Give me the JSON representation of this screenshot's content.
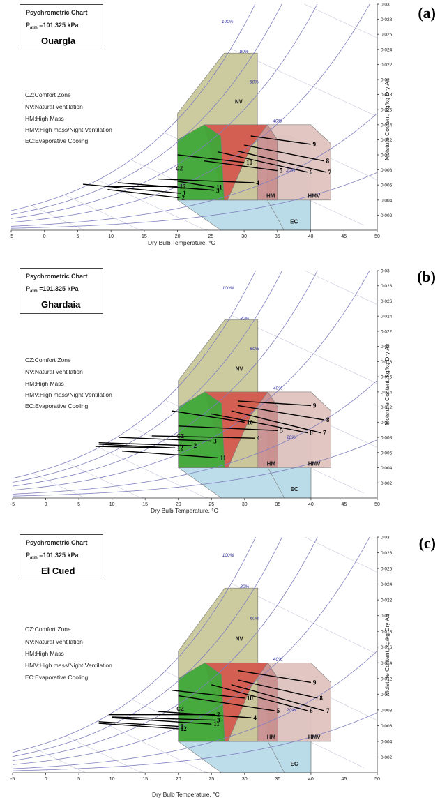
{
  "chart_data": [
    {
      "id": "a",
      "type": "line",
      "panel_label": "(a)",
      "title": "Psychrometric Chart",
      "pressure_label": "P",
      "pressure_sub": "atm",
      "pressure_value": "=101.325 kPa",
      "location": "Ouargla",
      "legend": [
        "CZ:Comfort Zone",
        "NV:Natural Ventilation",
        "HM:High Mass",
        "HMV:High mass/Night Ventilation",
        "EC:Evaporative Cooling"
      ],
      "xlabel": "Dry Bulb Temperature,  °C",
      "ylabel": "Moisture Content, kg/kg Dry Air",
      "xlim": [
        -5,
        50
      ],
      "ylim": [
        0,
        0.03
      ],
      "x_ticks": [
        "-5",
        "0",
        "5",
        "10",
        "15",
        "20",
        "25",
        "30",
        "35",
        "40",
        "45",
        "50"
      ],
      "y_ticks": [
        "0.002",
        "0.004",
        "0.006",
        "0.008",
        "0.01",
        "0.012",
        "0.014",
        "0.016",
        "0.018",
        "0.02",
        "0.022",
        "0.024",
        "0.026",
        "0.028",
        "0.03"
      ],
      "rh_labels": [
        {
          "text": "100%",
          "t": 27.5,
          "w": 0.0275
        },
        {
          "text": "80%",
          "t": 30,
          "w": 0.0235
        },
        {
          "text": "60%",
          "t": 31.5,
          "w": 0.0195
        },
        {
          "text": "40%",
          "t": 35,
          "w": 0.0143
        },
        {
          "text": "20%",
          "t": 37,
          "w": 0.0078
        }
      ],
      "zone_labels": [
        {
          "text": "NV",
          "t": 29.2,
          "w": 0.0168
        },
        {
          "text": "CZ",
          "t": 20.3,
          "w": 0.0079
        },
        {
          "text": "HM",
          "t": 34,
          "w": 0.0043
        },
        {
          "text": "HMV",
          "t": 40.5,
          "w": 0.0043
        },
        {
          "text": "EC",
          "t": 37.5,
          "w": 0.0009
        }
      ],
      "months": [
        {
          "label": "1",
          "t1": 5.8,
          "w1": 0.0061,
          "t2": 20.5,
          "w2": 0.0049
        },
        {
          "label": "2",
          "t1": 9.5,
          "w1": 0.0054,
          "t2": 20.3,
          "w2": 0.0043
        },
        {
          "label": "3",
          "t1": 11,
          "w1": 0.0063,
          "t2": 25.5,
          "w2": 0.0053
        },
        {
          "label": "4",
          "t1": 17,
          "w1": 0.0068,
          "t2": 31.5,
          "w2": 0.0063
        },
        {
          "label": "5",
          "t1": 24,
          "w1": 0.0092,
          "t2": 35,
          "w2": 0.0079
        },
        {
          "label": "6",
          "t1": 26,
          "w1": 0.0104,
          "t2": 39.5,
          "w2": 0.0077
        },
        {
          "label": "7",
          "t1": 29,
          "w1": 0.0105,
          "t2": 42.3,
          "w2": 0.0077
        },
        {
          "label": "8",
          "t1": 30,
          "w1": 0.0113,
          "t2": 42,
          "w2": 0.0092
        },
        {
          "label": "9",
          "t1": 31,
          "w1": 0.0125,
          "t2": 40,
          "w2": 0.0114
        },
        {
          "label": "10",
          "t1": 20,
          "w1": 0.01,
          "t2": 30,
          "w2": 0.009
        },
        {
          "label": "11",
          "t1": 20,
          "w1": 0.0065,
          "t2": 25.5,
          "w2": 0.0057
        },
        {
          "label": "12",
          "t1": 10,
          "w1": 0.0058,
          "t2": 20,
          "w2": 0.0058
        }
      ]
    },
    {
      "id": "b",
      "type": "line",
      "panel_label": "(b)",
      "title": "Psychrometric Chart",
      "pressure_label": "P",
      "pressure_sub": "atm",
      "pressure_value": "=101.325 kPa",
      "location": "Ghardaia",
      "legend": [
        "CZ:Comfort Zone",
        "NV:Natural Ventilation",
        "HM:High Mass",
        "HMV:High mass/Night Ventilation",
        "EC:Evaporative Cooling"
      ],
      "xlabel": "Dry Bulb Temperature,  °C",
      "ylabel": "Moisture Content, kg/kg Dry Air",
      "xlim": [
        -5,
        50
      ],
      "ylim": [
        0,
        0.03
      ],
      "x_ticks": [
        "-5",
        "0",
        "5",
        "10",
        "15",
        "20",
        "25",
        "30",
        "35",
        "40",
        "45",
        "50"
      ],
      "y_ticks": [
        "0.002",
        "0.004",
        "0.006",
        "0.008",
        "0.01",
        "0.012",
        "0.014",
        "0.016",
        "0.018",
        "0.02",
        "0.022",
        "0.024",
        "0.026",
        "0.028",
        "0.03"
      ],
      "rh_labels": [
        {
          "text": "100%",
          "t": 27.5,
          "w": 0.0275
        },
        {
          "text": "80%",
          "t": 30,
          "w": 0.0235
        },
        {
          "text": "60%",
          "t": 31.5,
          "w": 0.0195
        },
        {
          "text": "40%",
          "t": 35,
          "w": 0.0143
        },
        {
          "text": "20%",
          "t": 37,
          "w": 0.0078
        }
      ],
      "zone_labels": [
        {
          "text": "NV",
          "t": 29.2,
          "w": 0.0168
        },
        {
          "text": "CZ",
          "t": 20.3,
          "w": 0.0079
        },
        {
          "text": "HM",
          "t": 34,
          "w": 0.0043
        },
        {
          "text": "HMV",
          "t": 40.5,
          "w": 0.0043
        },
        {
          "text": "EC",
          "t": 37.5,
          "w": 0.0009
        }
      ],
      "months": [
        {
          "label": "1",
          "t1": 8,
          "w1": 0.0071,
          "t2": 19.5,
          "w2": 0.0066
        },
        {
          "label": "2",
          "t1": 8,
          "w1": 0.0073,
          "t2": 22,
          "w2": 0.0069
        },
        {
          "label": "3",
          "t1": 11,
          "w1": 0.008,
          "t2": 25,
          "w2": 0.0075
        },
        {
          "label": "4",
          "t1": 16,
          "w1": 0.0082,
          "t2": 31.5,
          "w2": 0.0079
        },
        {
          "label": "5",
          "t1": 20,
          "w1": 0.0095,
          "t2": 35,
          "w2": 0.0089
        },
        {
          "label": "6",
          "t1": 25,
          "w1": 0.0111,
          "t2": 39.5,
          "w2": 0.0086
        },
        {
          "label": "7",
          "t1": 28,
          "w1": 0.0115,
          "t2": 41.5,
          "w2": 0.0086
        },
        {
          "label": "8",
          "t1": 29,
          "w1": 0.0122,
          "t2": 42,
          "w2": 0.0103
        },
        {
          "label": "9",
          "t1": 29,
          "w1": 0.0128,
          "t2": 40,
          "w2": 0.0122
        },
        {
          "label": "10",
          "t1": 19,
          "w1": 0.0115,
          "t2": 30,
          "w2": 0.01
        },
        {
          "label": "11",
          "t1": 11.5,
          "w1": 0.0062,
          "t2": 26,
          "w2": 0.0053
        },
        {
          "label": "12",
          "t1": 7.5,
          "w1": 0.0068,
          "t2": 19.5,
          "w2": 0.0066
        }
      ]
    },
    {
      "id": "c",
      "type": "line",
      "panel_label": "(c)",
      "title": "Psychrometric Chart",
      "pressure_label": "P",
      "pressure_sub": "atm",
      "pressure_value": "=101.325 kPa",
      "location": "El Cued",
      "legend": [
        "CZ:Comfort Zone",
        "NV:Natural Ventilation",
        "HM:High Mass",
        "HMV:High mass/Night Ventilation",
        "EC:Evaporative Cooling"
      ],
      "xlabel": "Dry Bulb Temperature,  °C",
      "ylabel": "Moisture Content, kg/kg Dry Air",
      "xlim": [
        -5,
        50
      ],
      "ylim": [
        0,
        0.03
      ],
      "x_ticks": [
        "-5",
        "0",
        "5",
        "10",
        "15",
        "20",
        "25",
        "30",
        "35",
        "40",
        "45",
        "50"
      ],
      "y_ticks": [
        "0.002",
        "0.004",
        "0.006",
        "0.008",
        "0.01",
        "0.012",
        "0.014",
        "0.016",
        "0.018",
        "0.02",
        "0.022",
        "0.024",
        "0.026",
        "0.028",
        "0.03"
      ],
      "rh_labels": [
        {
          "text": "100%",
          "t": 27.5,
          "w": 0.0275
        },
        {
          "text": "80%",
          "t": 30,
          "w": 0.0235
        },
        {
          "text": "60%",
          "t": 31.5,
          "w": 0.0195
        },
        {
          "text": "40%",
          "t": 35,
          "w": 0.0143
        },
        {
          "text": "20%",
          "t": 37,
          "w": 0.0078
        }
      ],
      "zone_labels": [
        {
          "text": "NV",
          "t": 29.2,
          "w": 0.0168
        },
        {
          "text": "CZ",
          "t": 20.3,
          "w": 0.0079
        },
        {
          "text": "HM",
          "t": 34,
          "w": 0.0043
        },
        {
          "text": "HMV",
          "t": 40.5,
          "w": 0.0043
        },
        {
          "text": "EC",
          "t": 37.5,
          "w": 0.0009
        }
      ],
      "months": [
        {
          "label": "1",
          "t1": 8,
          "w1": 0.0065,
          "t2": 20,
          "w2": 0.0059
        },
        {
          "label": "2",
          "t1": 9.5,
          "w1": 0.0074,
          "t2": 25.5,
          "w2": 0.0074
        },
        {
          "label": "3",
          "t1": 10,
          "w1": 0.0071,
          "t2": 25.5,
          "w2": 0.0067
        },
        {
          "label": "4",
          "t1": 17,
          "w1": 0.0078,
          "t2": 31,
          "w2": 0.007
        },
        {
          "label": "5",
          "t1": 20,
          "w1": 0.0098,
          "t2": 34.5,
          "w2": 0.0079
        },
        {
          "label": "6",
          "t1": 25,
          "w1": 0.0112,
          "t2": 39.5,
          "w2": 0.0079
        },
        {
          "label": "7",
          "t1": 28,
          "w1": 0.0112,
          "t2": 42,
          "w2": 0.0079
        },
        {
          "label": "8",
          "t1": 29,
          "w1": 0.0118,
          "t2": 41,
          "w2": 0.0095
        },
        {
          "label": "9",
          "t1": 29,
          "w1": 0.013,
          "t2": 40,
          "w2": 0.0115
        },
        {
          "label": "10",
          "t1": 19,
          "w1": 0.0105,
          "t2": 30,
          "w2": 0.0095
        },
        {
          "label": "11",
          "t1": 10,
          "w1": 0.007,
          "t2": 25,
          "w2": 0.0062
        },
        {
          "label": "12",
          "t1": 8,
          "w1": 0.0063,
          "t2": 20,
          "w2": 0.0056
        }
      ]
    }
  ],
  "colors": {
    "nv": "#c9c79a",
    "cz": "#3fa83a",
    "hm": "#c98f8f",
    "hmv": "#dfc3bf",
    "ec": "#b9dbe9",
    "rh_curve": "#7f7fbf",
    "rh_text": "#2c2ca0",
    "wb_line": "#c9c9dd"
  }
}
